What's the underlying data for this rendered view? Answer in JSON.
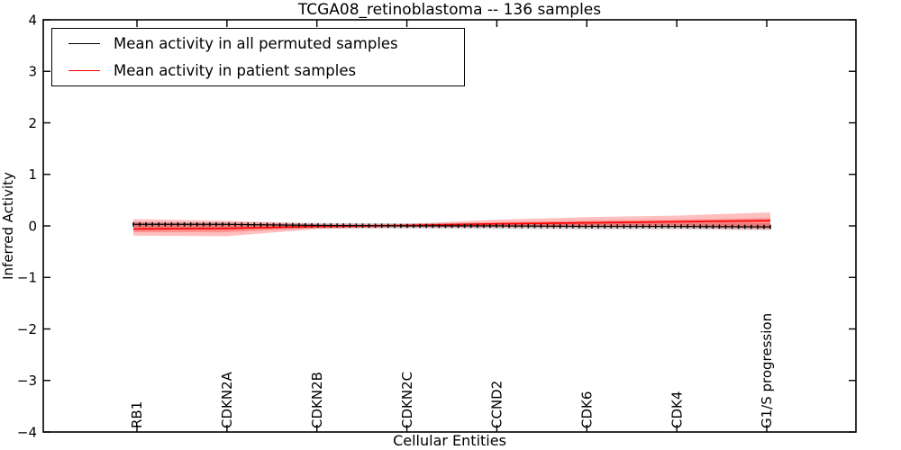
{
  "figure": {
    "title": "TCGA08_retinoblastoma -- 136 samples",
    "xlabel": "Cellular Entities",
    "ylabel": "Inferred Activity"
  },
  "chart_data": {
    "type": "line",
    "title": "TCGA08_retinoblastoma -- 136 samples",
    "xlabel": "Cellular Entities",
    "ylabel": "Inferred Activity",
    "ylim": [
      -4,
      4
    ],
    "yticks": [
      4,
      3,
      2,
      1,
      0,
      -1,
      -2,
      -3,
      -4
    ],
    "ytick_labels": [
      "4",
      "3",
      "2",
      "1",
      "0",
      "−1",
      "−2",
      "−3",
      "−4"
    ],
    "grid": false,
    "legend_position": "upper left",
    "categories": [
      "RB1",
      "CDKN2A",
      "CDKN2B",
      "CDKN2C",
      "CCND2",
      "CDK6",
      "CDK4",
      "G1/S progression"
    ],
    "series": [
      {
        "name": "Mean activity in all permuted samples",
        "color": "#000000",
        "marker": "|",
        "values": [
          0.03,
          0.03,
          0.01,
          0.0,
          0.0,
          -0.01,
          -0.01,
          -0.02
        ]
      },
      {
        "name": "Mean activity in patient samples",
        "color": "#ff0000",
        "marker": "none",
        "values": [
          -0.06,
          -0.05,
          -0.01,
          0.01,
          0.04,
          0.06,
          0.08,
          0.1
        ]
      }
    ],
    "bands": [
      {
        "name": "permuted samples spread",
        "color": "#a8a8a8",
        "opacity": 0.45,
        "upper": [
          0.08,
          0.07,
          0.06,
          0.05,
          0.05,
          0.05,
          0.05,
          0.05
        ],
        "lower": [
          -0.04,
          -0.04,
          -0.05,
          -0.05,
          -0.06,
          -0.07,
          -0.07,
          -0.08
        ]
      },
      {
        "name": "patient samples spread outer",
        "color": "#ff0000",
        "opacity": 0.25,
        "upper": [
          0.13,
          0.1,
          0.04,
          0.04,
          0.12,
          0.17,
          0.2,
          0.26
        ],
        "lower": [
          -0.19,
          -0.2,
          -0.06,
          -0.03,
          -0.03,
          -0.03,
          -0.04,
          -0.07
        ]
      },
      {
        "name": "patient samples spread inner",
        "color": "#ff0000",
        "opacity": 0.25,
        "upper": [
          0.06,
          0.04,
          0.02,
          0.02,
          0.07,
          0.1,
          0.12,
          0.15
        ],
        "lower": [
          -0.12,
          -0.12,
          -0.04,
          -0.01,
          0.0,
          0.0,
          0.01,
          -0.03
        ]
      }
    ]
  },
  "legend": {
    "entries": [
      {
        "label": "Mean activity in all permuted samples",
        "color": "#000000"
      },
      {
        "label": "Mean activity in patient samples",
        "color": "#ff0000"
      }
    ]
  }
}
